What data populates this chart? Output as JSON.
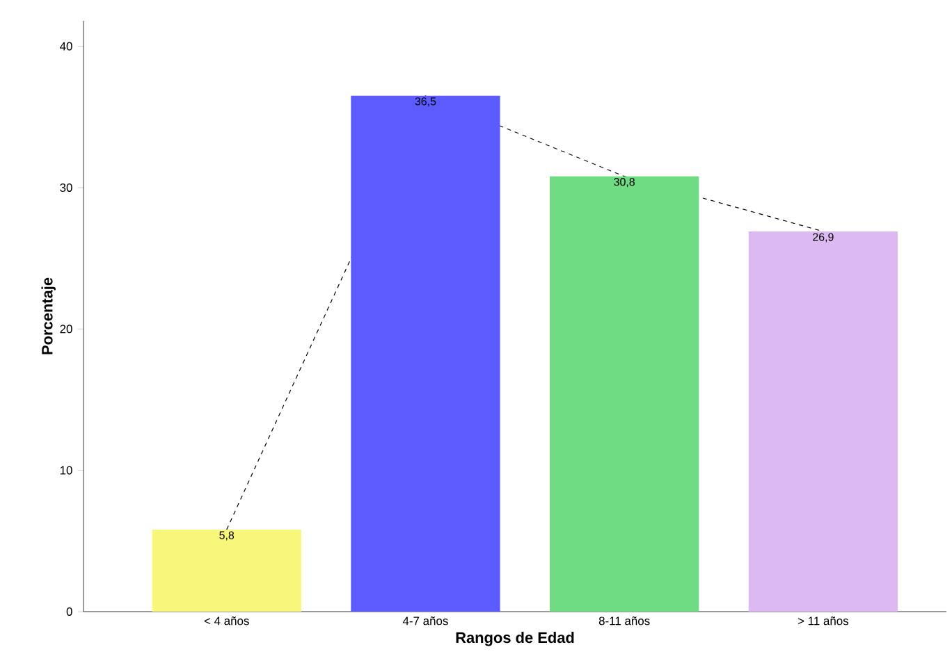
{
  "chart_data": {
    "type": "bar",
    "xlabel": "Rangos de Edad",
    "ylabel": "Porcentaje",
    "categories": [
      "< 4 años",
      "4-7 años",
      "8-11 años",
      "> 11 años"
    ],
    "series": [
      {
        "type": "line",
        "color": "#000000",
        "line_style": "dashed",
        "values": [
          5.8,
          36.5,
          30.8,
          26.9
        ]
      },
      {
        "colors": [
          "#f8f77a",
          "#5b5bff",
          "#6fdb82",
          "#dcb9f1"
        ],
        "values": [
          5.8,
          36.5,
          30.8,
          26.9
        ],
        "value_labels": [
          "5,8",
          "36,5",
          "30,8",
          "26,9"
        ]
      }
    ],
    "ylim": [
      0,
      41.8
    ],
    "yticks": [
      0,
      10,
      20,
      30,
      40
    ],
    "grid": false
  }
}
